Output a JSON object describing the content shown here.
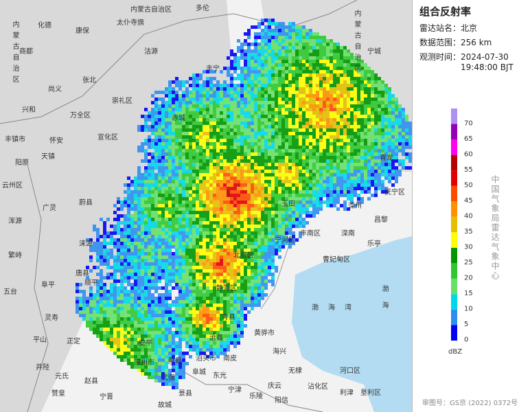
{
  "panel": {
    "title": "组合反射率",
    "rows": [
      {
        "label": "雷达站名：",
        "value": "北京"
      },
      {
        "label": "数据范围：",
        "value": "256 km"
      },
      {
        "label": "观测时间：",
        "value": "2024-07-30 19:48:00 BJT"
      }
    ],
    "legend": {
      "levels": [
        0,
        5,
        10,
        15,
        20,
        25,
        30,
        35,
        40,
        45,
        50,
        55,
        60,
        65,
        70
      ],
      "colors": [
        "#0000f6",
        "#2e8ef0",
        "#00d8e8",
        "#66e066",
        "#2ec82e",
        "#009600",
        "#ffff00",
        "#e6c000",
        "#ff9000",
        "#ff4a00",
        "#e00000",
        "#b40000",
        "#ff00f0",
        "#9600b4",
        "#ad90f0"
      ],
      "unit": "dBZ"
    },
    "agency": "中国气象局雷达气象中心",
    "approval": "审图号：GS京 (2022) 0372号"
  },
  "map": {
    "labels": [
      "内蒙古自治区",
      "内蒙古自治区",
      "内蒙古自治区",
      "多伦",
      "太仆寺旗",
      "化德",
      "康保",
      "商都",
      "沽源",
      "丰宁",
      "尚义",
      "张北",
      "崇礼区",
      "兴和",
      "万全区",
      "赤城",
      "怀安",
      "宣化区",
      "阳原",
      "天镇",
      "丰镇市",
      "云州区",
      "浑源",
      "繁峙",
      "蔚县",
      "广灵",
      "涞源",
      "唐县",
      "阜平",
      "五台",
      "顺平",
      "灵寿",
      "平山",
      "井陉",
      "正定",
      "元氏",
      "赵县",
      "赞皇",
      "宁晋",
      "深州市",
      "安平",
      "献县",
      "武强",
      "阜城",
      "景县",
      "故城",
      "泊头市",
      "南皮",
      "东光",
      "宁津",
      "乐陵",
      "庆云",
      "阳信",
      "青县",
      "沧县",
      "静海区",
      "北辰区",
      "黄骅市",
      "海兴",
      "无棣",
      "沾化区",
      "河口区",
      "利津",
      "垦利区",
      "宁河区",
      "玉田",
      "丰南区",
      "曹妃甸区",
      "滦州",
      "滦南",
      "乐亭",
      "昌黎",
      "抚宁区",
      "青龙",
      "宁城",
      "渤海湾",
      "渤海"
    ]
  }
}
